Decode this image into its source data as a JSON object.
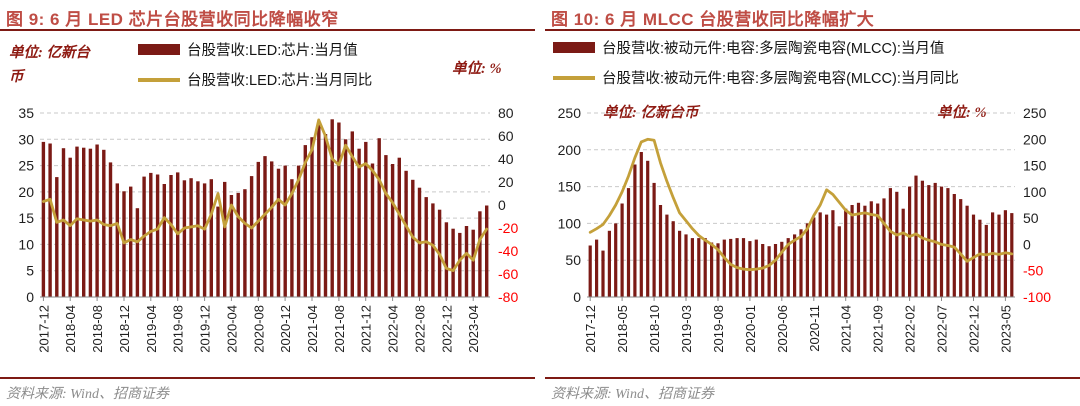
{
  "footer": {
    "source_text": "资料来源: Wind、招商证券"
  },
  "chart_data": [
    {
      "type": "bar+line",
      "title": "图 9: 6 月 LED 芯片台股营收同比降幅收窄",
      "unit_left": "单位: 亿新台币",
      "unit_right": "单位: %",
      "legend_position": "top-center",
      "grid": "horizontal-dashed",
      "x_start": "2017-12",
      "x_end": "2023-06",
      "x_tick_every": 4,
      "x_tick_labels": [
        "2017-12",
        "2018-04",
        "2018-08",
        "2018-12",
        "2019-04",
        "2019-08",
        "2019-12",
        "2020-04",
        "2020-08",
        "2020-12",
        "2021-04",
        "2021-08",
        "2021-12",
        "2022-04",
        "2022-08",
        "2022-12",
        "2023-04"
      ],
      "left_axis": {
        "min": 0,
        "max": 35,
        "ticks": [
          0,
          5,
          10,
          15,
          20,
          25,
          30,
          35
        ]
      },
      "right_axis": {
        "min": -80,
        "max": 80,
        "ticks": [
          -80,
          -60,
          -40,
          -20,
          0,
          20,
          40,
          60,
          80
        ],
        "negative_color": "#FF0000"
      },
      "series": [
        {
          "name": "台股营收:LED:芯片:当月值",
          "type": "bar",
          "axis": "left",
          "color": "#7B1A15",
          "values": [
            29.5,
            29.2,
            22.8,
            28.3,
            26.5,
            28.6,
            28.4,
            28.2,
            29.0,
            28.0,
            25.6,
            21.6,
            20.1,
            21.0,
            16.9,
            22.9,
            23.6,
            23.3,
            21.5,
            23.2,
            23.7,
            22.2,
            22.6,
            22.0,
            21.6,
            22.4,
            17.2,
            21.9,
            19.4,
            19.8,
            20.5,
            23.0,
            25.7,
            26.8,
            25.8,
            24.4,
            25.0,
            22.4,
            25.0,
            28.9,
            30.4,
            33.5,
            31.0,
            33.8,
            33.2,
            30.0,
            31.5,
            28.2,
            29.5,
            25.4,
            30.2,
            27.0,
            25.3,
            26.5,
            24.0,
            22.3,
            20.8,
            19.0,
            17.8,
            16.6,
            14.2,
            13.0,
            12.2,
            13.5,
            12.8,
            16.3,
            17.4
          ]
        },
        {
          "name": "台股营收:LED:芯片:当月同比",
          "type": "line",
          "axis": "right",
          "color": "#C4A03A",
          "values": [
            3,
            5,
            -15,
            -13,
            -18,
            -12,
            -13,
            -14,
            -13,
            -17,
            -18,
            -16,
            -33,
            -30,
            -32,
            -27,
            -23,
            -21,
            -11,
            -17,
            -25,
            -20,
            -19,
            -18,
            -21,
            -8,
            10,
            -19,
            0,
            -10,
            -16,
            -20,
            -14,
            -8,
            -2,
            5,
            0,
            10,
            22,
            37,
            48,
            74,
            60,
            40,
            35,
            52,
            42,
            33,
            36,
            30,
            22,
            10,
            2,
            -8,
            -18,
            -28,
            -33,
            -32,
            -35,
            -43,
            -55,
            -57,
            -48,
            -42,
            -48,
            -30,
            -21
          ]
        }
      ]
    },
    {
      "type": "bar+line",
      "title": "图 10: 6 月 MLCC 台股营收同比降幅扩大",
      "unit_left": "单位: 亿新台币",
      "unit_right": "单位: %",
      "legend_position": "top-left",
      "grid": "horizontal-dashed",
      "x_start": "2017-12",
      "x_end": "2023-06",
      "x_tick_every": 5,
      "x_tick_labels": [
        "2017-12",
        "2018-05",
        "2018-10",
        "2019-03",
        "2019-08",
        "2020-01",
        "2020-06",
        "2020-11",
        "2021-04",
        "2021-09",
        "2022-02",
        "2022-07",
        "2022-12",
        "2023-05"
      ],
      "left_axis": {
        "min": 0,
        "max": 250,
        "ticks": [
          0,
          50,
          100,
          150,
          200,
          250
        ]
      },
      "right_axis": {
        "min": -100,
        "max": 250,
        "ticks": [
          -100,
          -50,
          0,
          50,
          100,
          150,
          200,
          250
        ],
        "negative_color": "#FF0000"
      },
      "series": [
        {
          "name": "台股营收:被动元件:电容:多层陶瓷电容(MLCC):当月值",
          "type": "bar",
          "axis": "left",
          "color": "#7B1A15",
          "values": [
            70,
            78,
            63,
            90,
            100,
            127,
            148,
            180,
            197,
            185,
            155,
            125,
            112,
            103,
            90,
            85,
            80,
            80,
            80,
            74,
            73,
            78,
            79,
            80,
            80,
            76,
            78,
            72,
            69,
            72,
            75,
            80,
            85,
            92,
            100,
            108,
            115,
            112,
            118,
            96,
            120,
            125,
            128,
            124,
            130,
            127,
            134,
            148,
            143,
            120,
            150,
            165,
            158,
            152,
            155,
            150,
            148,
            140,
            133,
            124,
            112,
            105,
            98,
            115,
            112,
            118,
            114
          ]
        },
        {
          "name": "台股营收:被动元件:电容:多层陶瓷电容(MLCC):当月同比",
          "type": "line",
          "axis": "right",
          "color": "#C4A03A",
          "values": [
            23,
            30,
            38,
            55,
            75,
            100,
            130,
            165,
            195,
            200,
            198,
            155,
            120,
            89,
            60,
            45,
            30,
            17,
            8,
            0,
            -10,
            -25,
            -38,
            -44,
            -47,
            -48,
            -47,
            -45,
            -40,
            -30,
            -15,
            0,
            8,
            15,
            30,
            55,
            75,
            104,
            95,
            80,
            65,
            56,
            58,
            60,
            57,
            55,
            40,
            25,
            18,
            22,
            15,
            20,
            12,
            8,
            5,
            0,
            -2,
            -5,
            -18,
            -32,
            -25,
            -18,
            -20,
            -17,
            -19,
            -16,
            -18
          ]
        }
      ]
    }
  ]
}
